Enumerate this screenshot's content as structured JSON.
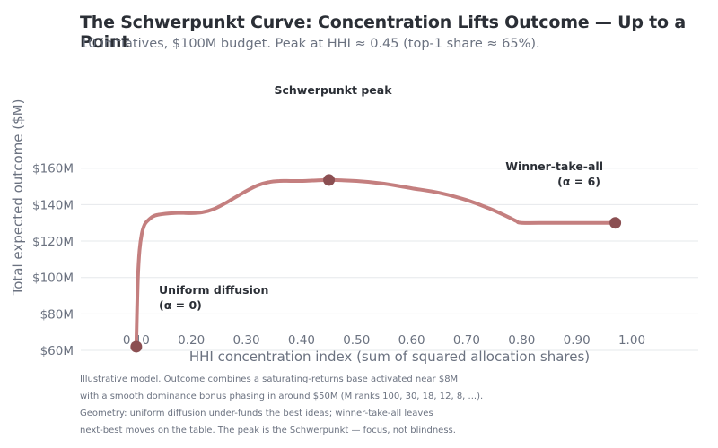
{
  "chart_data": {
    "type": "line",
    "title": "The Schwerpunkt Curve: Concentration Lifts Outcome — Up to a Point",
    "subtitle": "10 initiatives, $100M budget. Peak at HHI ≈ 0.45 (top-1 share ≈ 65%).",
    "xlabel": "HHI concentration index (sum of squared allocation shares)",
    "ylabel": "Total expected outcome ($M)",
    "xlim": [
      0.0,
      1.0
    ],
    "ylim": [
      50,
      165
    ],
    "x_ticks": [
      0.1,
      0.2,
      0.3,
      0.4,
      0.5,
      0.6,
      0.7,
      0.8,
      0.9,
      1.0
    ],
    "x_tick_labels": [
      "0.10",
      "0.20",
      "0.30",
      "0.40",
      "0.50",
      "0.60",
      "0.70",
      "0.80",
      "0.90",
      "1.00"
    ],
    "y_ticks": [
      60,
      80,
      100,
      120,
      140,
      160
    ],
    "y_tick_labels": [
      "$60M",
      "$80M",
      "$100M",
      "$120M",
      "$140M",
      "$160M"
    ],
    "grid": "horizontal",
    "line_color": "#c47f7f",
    "marker_color": "#8b4f52",
    "series": [
      {
        "x": [
          0.1,
          0.101,
          0.103,
          0.106,
          0.11,
          0.115,
          0.12,
          0.13,
          0.14,
          0.16,
          0.18,
          0.2,
          0.22,
          0.24,
          0.26,
          0.28,
          0.3,
          0.32,
          0.34,
          0.36,
          0.38,
          0.4,
          0.42,
          0.45,
          0.5,
          0.55,
          0.6,
          0.65,
          0.7,
          0.74,
          0.77,
          0.79,
          0.8,
          0.85,
          0.9,
          0.97
        ],
        "y": [
          62,
          78,
          100,
          115,
          124,
          129,
          131,
          133.5,
          134.5,
          135.2,
          135.5,
          135.3,
          135.8,
          137.5,
          140.5,
          144,
          147.5,
          150.5,
          152.3,
          153,
          153,
          153,
          153.2,
          153.5,
          153,
          151.5,
          149,
          146.5,
          142.5,
          138,
          134,
          131,
          130,
          130,
          130,
          130
        ]
      }
    ],
    "markers": [
      {
        "x": 0.1,
        "y": 62
      },
      {
        "x": 0.45,
        "y": 153.5
      },
      {
        "x": 0.97,
        "y": 130
      }
    ],
    "annotations": [
      {
        "line1": "Uniform diffusion",
        "line2": "(α = 0)"
      },
      {
        "line1": "Schwerpunkt peak"
      },
      {
        "line1": "Winner-take-all",
        "line2": "(α = 6)"
      }
    ],
    "notes": [
      "Illustrative model. Outcome combines a saturating-returns base activated near $8M",
      "with a smooth dominance bonus phasing in around $50M (M ranks 100, 30, 18, 12, 8, ...).",
      "Geometry: uniform diffusion under-funds the best ideas; winner-take-all leaves",
      "next-best moves on the table. The peak is the Schwerpunkt — focus, not blindness."
    ]
  }
}
